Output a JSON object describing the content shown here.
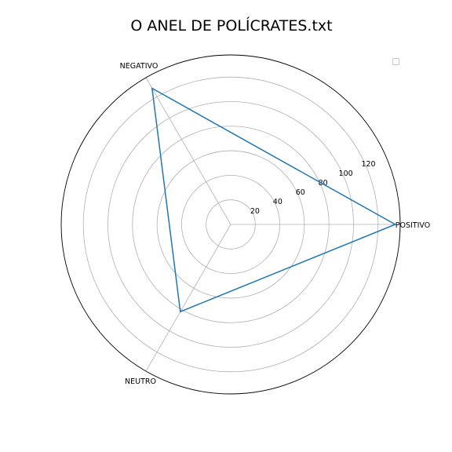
{
  "chart_data": {
    "type": "radar",
    "title": "O ANEL DE POLÍCRATES.txt",
    "categories": [
      "POSITIVO",
      "NEGATIVO",
      "NEUTRO"
    ],
    "series": [
      {
        "values": [
          134,
          128,
          82
        ]
      }
    ],
    "rlim": [
      0,
      138
    ],
    "rticks": [
      20,
      40,
      60,
      80,
      100,
      120
    ],
    "grid": true,
    "legend": "top-right",
    "colors": {
      "series": "#1f77b4",
      "grid": "#b0b0b0",
      "frame": "#000000"
    }
  }
}
